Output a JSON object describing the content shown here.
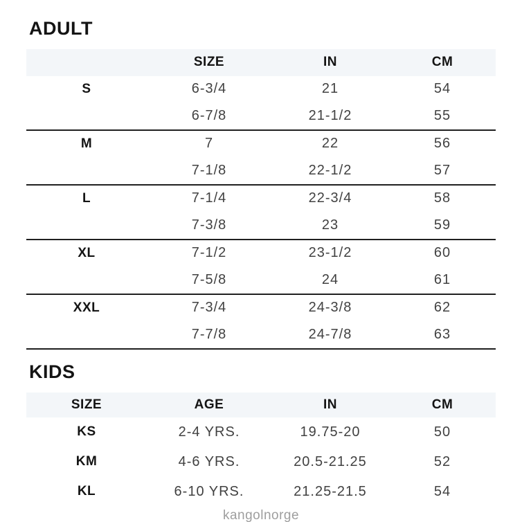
{
  "colors": {
    "header_band": "#f3f6f9",
    "divider_line": "#1f1f1f",
    "heading_text": "#141414",
    "value_text": "#414141",
    "watermark_text": "#9e9e9e",
    "background": "#ffffff"
  },
  "adult": {
    "title": "ADULT",
    "columns": [
      "",
      "SIZE",
      "IN",
      "CM"
    ],
    "groups": [
      {
        "label": "S",
        "rows": [
          [
            "6-3/4",
            "21",
            "54"
          ],
          [
            "6-7/8",
            "21-1/2",
            "55"
          ]
        ]
      },
      {
        "label": "M",
        "rows": [
          [
            "7",
            "22",
            "56"
          ],
          [
            "7-1/8",
            "22-1/2",
            "57"
          ]
        ]
      },
      {
        "label": "L",
        "rows": [
          [
            "7-1/4",
            "22-3/4",
            "58"
          ],
          [
            "7-3/8",
            "23",
            "59"
          ]
        ]
      },
      {
        "label": "XL",
        "rows": [
          [
            "7-1/2",
            "23-1/2",
            "60"
          ],
          [
            "7-5/8",
            "24",
            "61"
          ]
        ]
      },
      {
        "label": "XXL",
        "rows": [
          [
            "7-3/4",
            "24-3/8",
            "62"
          ],
          [
            "7-7/8",
            "24-7/8",
            "63"
          ]
        ]
      }
    ]
  },
  "kids": {
    "title": "KIDS",
    "columns": [
      "SIZE",
      "AGE",
      "IN",
      "CM"
    ],
    "rows": [
      [
        "KS",
        "2-4 YRS.",
        "19.75-20",
        "50"
      ],
      [
        "KM",
        "4-6 YRS.",
        "20.5-21.25",
        "52"
      ],
      [
        "KL",
        "6-10 YRS.",
        "21.25-21.5",
        "54"
      ]
    ]
  },
  "footer": {
    "watermark": "kangolnorge"
  }
}
